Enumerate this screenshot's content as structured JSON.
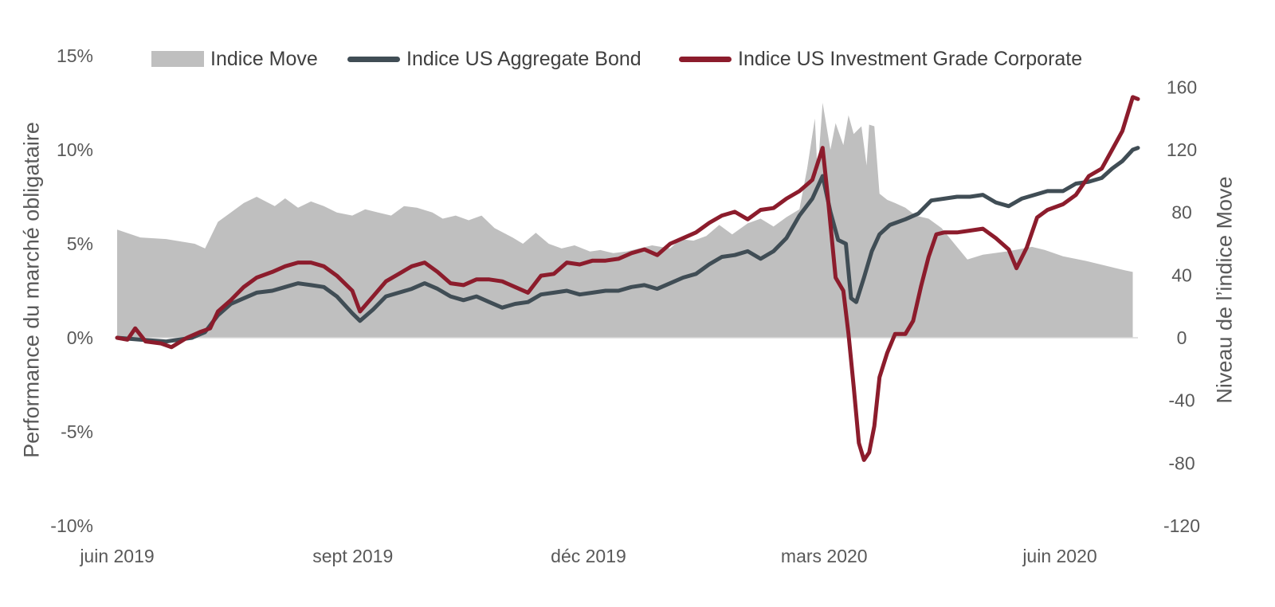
{
  "chart_data": {
    "type": "line",
    "title": "",
    "x_tick_labels": [
      "juin 2019",
      "sept 2019",
      "déc 2019",
      "mars 2020",
      "juin 2020"
    ],
    "x_range": [
      "2019-06-01",
      "2020-06-30"
    ],
    "left_axis": {
      "label": "Performance du marché obligataire",
      "ticks": [
        "15%",
        "10%",
        "5%",
        "0%",
        "-5%",
        "-10%"
      ],
      "range": [
        -10,
        15
      ]
    },
    "right_axis": {
      "label": "Niveau de l’indice Move",
      "ticks": [
        "160",
        "120",
        "80",
        "40",
        "0",
        "-40",
        "-80",
        "-120"
      ],
      "range": [
        -120,
        180
      ]
    },
    "legend": {
      "position": "top",
      "items": [
        "Indice Move",
        "Indice US Aggregate Bond",
        "Indice US Investment Grade Corporate"
      ]
    },
    "grid": false,
    "series": [
      {
        "name": "Indice Move",
        "type": "area",
        "axis": "right",
        "color": "#bfbfbf",
        "points": [
          [
            "2019-06-01",
            69
          ],
          [
            "2019-06-10",
            64
          ],
          [
            "2019-06-20",
            63
          ],
          [
            "2019-07-01",
            60
          ],
          [
            "2019-07-05",
            57
          ],
          [
            "2019-07-10",
            74
          ],
          [
            "2019-07-15",
            80
          ],
          [
            "2019-07-20",
            86
          ],
          [
            "2019-07-25",
            90
          ],
          [
            "2019-08-01",
            84
          ],
          [
            "2019-08-05",
            89
          ],
          [
            "2019-08-10",
            83
          ],
          [
            "2019-08-15",
            87
          ],
          [
            "2019-08-20",
            84
          ],
          [
            "2019-08-25",
            80
          ],
          [
            "2019-08-31",
            78
          ],
          [
            "2019-09-05",
            82
          ],
          [
            "2019-09-10",
            80
          ],
          [
            "2019-09-15",
            78
          ],
          [
            "2019-09-20",
            84
          ],
          [
            "2019-09-25",
            83
          ],
          [
            "2019-10-01",
            80
          ],
          [
            "2019-10-05",
            76
          ],
          [
            "2019-10-10",
            78
          ],
          [
            "2019-10-15",
            75
          ],
          [
            "2019-10-20",
            78
          ],
          [
            "2019-10-25",
            70
          ],
          [
            "2019-11-01",
            64
          ],
          [
            "2019-11-05",
            60
          ],
          [
            "2019-11-10",
            67
          ],
          [
            "2019-11-15",
            60
          ],
          [
            "2019-11-20",
            57
          ],
          [
            "2019-11-25",
            59
          ],
          [
            "2019-12-01",
            55
          ],
          [
            "2019-12-05",
            56
          ],
          [
            "2019-12-10",
            54
          ],
          [
            "2019-12-15",
            55
          ],
          [
            "2019-12-20",
            57
          ],
          [
            "2019-12-25",
            59
          ],
          [
            "2020-01-01",
            57
          ],
          [
            "2020-01-05",
            63
          ],
          [
            "2020-01-10",
            62
          ],
          [
            "2020-01-15",
            65
          ],
          [
            "2020-01-20",
            72
          ],
          [
            "2020-01-25",
            66
          ],
          [
            "2020-01-31",
            73
          ],
          [
            "2020-02-05",
            76
          ],
          [
            "2020-02-10",
            71
          ],
          [
            "2020-02-15",
            77
          ],
          [
            "2020-02-20",
            82
          ],
          [
            "2020-02-23",
            108
          ],
          [
            "2020-02-26",
            140
          ],
          [
            "2020-02-27",
            105
          ],
          [
            "2020-02-29",
            150
          ],
          [
            "2020-03-03",
            120
          ],
          [
            "2020-03-05",
            137
          ],
          [
            "2020-03-08",
            123
          ],
          [
            "2020-03-10",
            142
          ],
          [
            "2020-03-12",
            130
          ],
          [
            "2020-03-15",
            135
          ],
          [
            "2020-03-17",
            110
          ],
          [
            "2020-03-18",
            136
          ],
          [
            "2020-03-20",
            135
          ],
          [
            "2020-03-22",
            92
          ],
          [
            "2020-03-25",
            88
          ],
          [
            "2020-03-28",
            86
          ],
          [
            "2020-04-01",
            83
          ],
          [
            "2020-04-05",
            78
          ],
          [
            "2020-04-10",
            76
          ],
          [
            "2020-04-15",
            70
          ],
          [
            "2020-04-20",
            60
          ],
          [
            "2020-04-25",
            50
          ],
          [
            "2020-05-01",
            53
          ],
          [
            "2020-05-10",
            55
          ],
          [
            "2020-05-20",
            58
          ],
          [
            "2020-05-25",
            56
          ],
          [
            "2020-06-01",
            52
          ],
          [
            "2020-06-10",
            49
          ],
          [
            "2020-06-20",
            45
          ],
          [
            "2020-06-25",
            43
          ],
          [
            "2020-06-28",
            42
          ]
        ]
      },
      {
        "name": "Indice US Aggregate Bond",
        "type": "line",
        "axis": "left",
        "color": "#404d55",
        "points": [
          [
            "2019-06-01",
            0
          ],
          [
            "2019-06-10",
            -0.1
          ],
          [
            "2019-06-20",
            -0.2
          ],
          [
            "2019-06-30",
            0
          ],
          [
            "2019-07-05",
            0.3
          ],
          [
            "2019-07-10",
            1.2
          ],
          [
            "2019-07-15",
            1.8
          ],
          [
            "2019-07-20",
            2.1
          ],
          [
            "2019-07-25",
            2.4
          ],
          [
            "2019-07-31",
            2.5
          ],
          [
            "2019-08-05",
            2.7
          ],
          [
            "2019-08-10",
            2.9
          ],
          [
            "2019-08-15",
            2.8
          ],
          [
            "2019-08-20",
            2.7
          ],
          [
            "2019-08-25",
            2.2
          ],
          [
            "2019-08-31",
            1.3
          ],
          [
            "2019-09-03",
            0.9
          ],
          [
            "2019-09-08",
            1.5
          ],
          [
            "2019-09-13",
            2.2
          ],
          [
            "2019-09-18",
            2.4
          ],
          [
            "2019-09-23",
            2.6
          ],
          [
            "2019-09-28",
            2.9
          ],
          [
            "2019-10-03",
            2.6
          ],
          [
            "2019-10-08",
            2.2
          ],
          [
            "2019-10-13",
            2.0
          ],
          [
            "2019-10-18",
            2.2
          ],
          [
            "2019-10-23",
            1.9
          ],
          [
            "2019-10-28",
            1.6
          ],
          [
            "2019-11-02",
            1.8
          ],
          [
            "2019-11-07",
            1.9
          ],
          [
            "2019-11-12",
            2.3
          ],
          [
            "2019-11-17",
            2.4
          ],
          [
            "2019-11-22",
            2.5
          ],
          [
            "2019-11-27",
            2.3
          ],
          [
            "2019-12-02",
            2.4
          ],
          [
            "2019-12-07",
            2.5
          ],
          [
            "2019-12-12",
            2.5
          ],
          [
            "2019-12-17",
            2.7
          ],
          [
            "2019-12-22",
            2.8
          ],
          [
            "2019-12-27",
            2.6
          ],
          [
            "2020-01-01",
            2.9
          ],
          [
            "2020-01-06",
            3.2
          ],
          [
            "2020-01-11",
            3.4
          ],
          [
            "2020-01-16",
            3.9
          ],
          [
            "2020-01-21",
            4.3
          ],
          [
            "2020-01-26",
            4.4
          ],
          [
            "2020-01-31",
            4.6
          ],
          [
            "2020-02-05",
            4.2
          ],
          [
            "2020-02-10",
            4.6
          ],
          [
            "2020-02-15",
            5.3
          ],
          [
            "2020-02-20",
            6.5
          ],
          [
            "2020-02-25",
            7.4
          ],
          [
            "2020-02-29",
            8.6
          ],
          [
            "2020-03-03",
            6.7
          ],
          [
            "2020-03-06",
            5.2
          ],
          [
            "2020-03-09",
            5.0
          ],
          [
            "2020-03-11",
            2.1
          ],
          [
            "2020-03-13",
            1.9
          ],
          [
            "2020-03-16",
            3.2
          ],
          [
            "2020-03-19",
            4.6
          ],
          [
            "2020-03-22",
            5.5
          ],
          [
            "2020-03-26",
            6.0
          ],
          [
            "2020-04-01",
            6.3
          ],
          [
            "2020-04-06",
            6.6
          ],
          [
            "2020-04-11",
            7.3
          ],
          [
            "2020-04-16",
            7.4
          ],
          [
            "2020-04-21",
            7.5
          ],
          [
            "2020-04-26",
            7.5
          ],
          [
            "2020-05-01",
            7.6
          ],
          [
            "2020-05-06",
            7.2
          ],
          [
            "2020-05-11",
            7.0
          ],
          [
            "2020-05-16",
            7.4
          ],
          [
            "2020-05-21",
            7.6
          ],
          [
            "2020-05-26",
            7.8
          ],
          [
            "2020-06-01",
            7.8
          ],
          [
            "2020-06-06",
            8.2
          ],
          [
            "2020-06-11",
            8.3
          ],
          [
            "2020-06-16",
            8.5
          ],
          [
            "2020-06-20",
            9.0
          ],
          [
            "2020-06-24",
            9.4
          ],
          [
            "2020-06-28",
            10.0
          ],
          [
            "2020-06-30",
            10.1
          ]
        ]
      },
      {
        "name": "Indice US Investment Grade Corporate",
        "type": "line",
        "axis": "left",
        "color": "#8c1c2c",
        "points": [
          [
            "2019-06-01",
            0
          ],
          [
            "2019-06-05",
            -0.1
          ],
          [
            "2019-06-08",
            0.5
          ],
          [
            "2019-06-12",
            -0.2
          ],
          [
            "2019-06-18",
            -0.3
          ],
          [
            "2019-06-22",
            -0.5
          ],
          [
            "2019-06-28",
            0
          ],
          [
            "2019-07-03",
            0.3
          ],
          [
            "2019-07-07",
            0.5
          ],
          [
            "2019-07-10",
            1.4
          ],
          [
            "2019-07-15",
            2.0
          ],
          [
            "2019-07-20",
            2.7
          ],
          [
            "2019-07-25",
            3.2
          ],
          [
            "2019-07-31",
            3.5
          ],
          [
            "2019-08-05",
            3.8
          ],
          [
            "2019-08-10",
            4.0
          ],
          [
            "2019-08-15",
            4.0
          ],
          [
            "2019-08-20",
            3.8
          ],
          [
            "2019-08-25",
            3.3
          ],
          [
            "2019-08-31",
            2.5
          ],
          [
            "2019-09-03",
            1.4
          ],
          [
            "2019-09-08",
            2.2
          ],
          [
            "2019-09-13",
            3.0
          ],
          [
            "2019-09-18",
            3.4
          ],
          [
            "2019-09-23",
            3.8
          ],
          [
            "2019-09-28",
            4.0
          ],
          [
            "2019-10-03",
            3.5
          ],
          [
            "2019-10-08",
            2.9
          ],
          [
            "2019-10-13",
            2.8
          ],
          [
            "2019-10-18",
            3.1
          ],
          [
            "2019-10-23",
            3.1
          ],
          [
            "2019-10-28",
            3.0
          ],
          [
            "2019-11-02",
            2.7
          ],
          [
            "2019-11-07",
            2.4
          ],
          [
            "2019-11-12",
            3.3
          ],
          [
            "2019-11-17",
            3.4
          ],
          [
            "2019-11-22",
            4.0
          ],
          [
            "2019-11-27",
            3.9
          ],
          [
            "2019-12-02",
            4.1
          ],
          [
            "2019-12-07",
            4.1
          ],
          [
            "2019-12-12",
            4.2
          ],
          [
            "2019-12-17",
            4.5
          ],
          [
            "2019-12-22",
            4.7
          ],
          [
            "2019-12-27",
            4.4
          ],
          [
            "2020-01-01",
            5.0
          ],
          [
            "2020-01-06",
            5.3
          ],
          [
            "2020-01-11",
            5.6
          ],
          [
            "2020-01-16",
            6.1
          ],
          [
            "2020-01-21",
            6.5
          ],
          [
            "2020-01-26",
            6.7
          ],
          [
            "2020-01-31",
            6.3
          ],
          [
            "2020-02-05",
            6.8
          ],
          [
            "2020-02-10",
            6.9
          ],
          [
            "2020-02-15",
            7.4
          ],
          [
            "2020-02-20",
            7.8
          ],
          [
            "2020-02-25",
            8.4
          ],
          [
            "2020-02-29",
            10.1
          ],
          [
            "2020-03-02",
            7.5
          ],
          [
            "2020-03-05",
            3.2
          ],
          [
            "2020-03-08",
            2.5
          ],
          [
            "2020-03-10",
            0.2
          ],
          [
            "2020-03-12",
            -2.6
          ],
          [
            "2020-03-14",
            -5.6
          ],
          [
            "2020-03-16",
            -6.5
          ],
          [
            "2020-03-18",
            -6.1
          ],
          [
            "2020-03-20",
            -4.7
          ],
          [
            "2020-03-22",
            -2.1
          ],
          [
            "2020-03-25",
            -0.8
          ],
          [
            "2020-03-28",
            0.2
          ],
          [
            "2020-04-01",
            0.2
          ],
          [
            "2020-04-04",
            0.9
          ],
          [
            "2020-04-07",
            2.7
          ],
          [
            "2020-04-10",
            4.3
          ],
          [
            "2020-04-13",
            5.5
          ],
          [
            "2020-04-16",
            5.6
          ],
          [
            "2020-04-21",
            5.6
          ],
          [
            "2020-04-26",
            5.7
          ],
          [
            "2020-05-01",
            5.8
          ],
          [
            "2020-05-06",
            5.3
          ],
          [
            "2020-05-11",
            4.7
          ],
          [
            "2020-05-14",
            3.7
          ],
          [
            "2020-05-18",
            4.8
          ],
          [
            "2020-05-22",
            6.4
          ],
          [
            "2020-05-26",
            6.8
          ],
          [
            "2020-06-01",
            7.1
          ],
          [
            "2020-06-06",
            7.6
          ],
          [
            "2020-06-11",
            8.6
          ],
          [
            "2020-06-16",
            9.0
          ],
          [
            "2020-06-20",
            10.0
          ],
          [
            "2020-06-24",
            11.0
          ],
          [
            "2020-06-28",
            12.8
          ],
          [
            "2020-06-30",
            12.7
          ]
        ]
      }
    ]
  }
}
